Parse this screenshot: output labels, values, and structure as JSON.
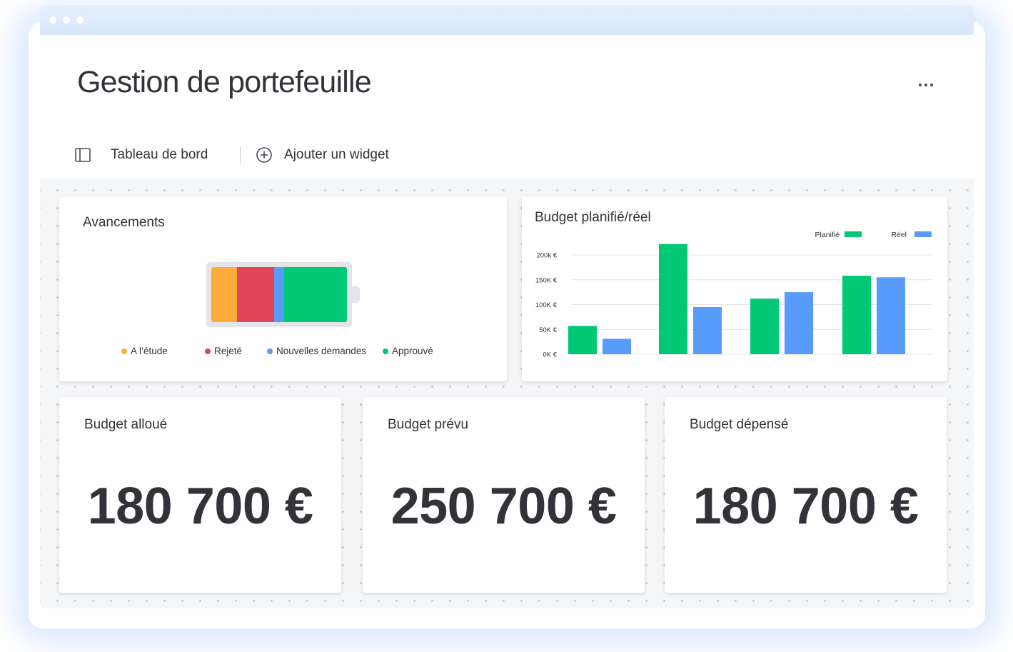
{
  "app": {
    "title": "Gestion de portefeuille"
  },
  "toolbar": {
    "dashboard_label": "Tableau de bord",
    "dashboard_icon": "sidebar-icon",
    "add_widget_label": "Ajouter un widget",
    "add_widget_icon": "plus-circle-icon",
    "more_icon": "more-icon"
  },
  "progress_widget": {
    "title": "Avancements",
    "segments": [
      {
        "label": "A l’étude",
        "color": "#fdab3d",
        "share": 0.19
      },
      {
        "label": "Rejeté",
        "color": "#e2445c",
        "share": 0.275
      },
      {
        "label": "Nouvelles demandes",
        "color": "#579bfc",
        "share": 0.07
      },
      {
        "label": "Approuvé",
        "color": "#00c875",
        "share": 0.465
      }
    ]
  },
  "budget_chart": {
    "title": "Budget planifié/réel",
    "chart_data": {
      "type": "bar",
      "title": "Budget planifié/réel",
      "categories": [
        "",
        "",
        "",
        ""
      ],
      "series": [
        {
          "name": "Planifié",
          "color": "#00c875",
          "values": [
            57000,
            222000,
            112000,
            158000
          ]
        },
        {
          "name": "Réel",
          "color": "#579bfc",
          "values": [
            31000,
            95000,
            125000,
            155000
          ]
        }
      ],
      "yticks": [
        {
          "value": 0,
          "label": "0K €"
        },
        {
          "value": 50000,
          "label": "50K €"
        },
        {
          "value": 100000,
          "label": "100K €"
        },
        {
          "value": 150000,
          "label": "150K €"
        },
        {
          "value": 200000,
          "label": "200k €"
        }
      ],
      "ylim": [
        0,
        200000
      ],
      "grid": true,
      "legend": "top-right"
    }
  },
  "kpis": [
    {
      "title": "Budget alloué",
      "value": "180 700 €"
    },
    {
      "title": "Budget prévu",
      "value": "250 700 €"
    },
    {
      "title": "Budget dépensé",
      "value": "180 700 €"
    }
  ]
}
